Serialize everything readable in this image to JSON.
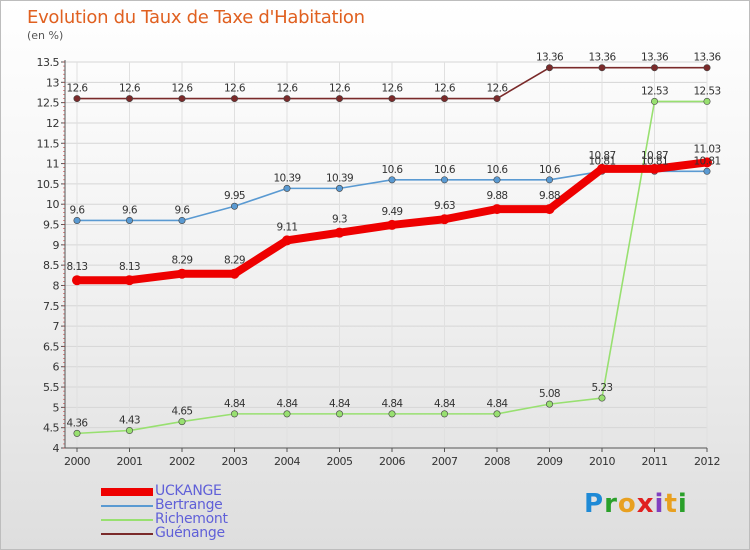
{
  "header": {
    "title": "Evolution du Taux de Taxe d'Habitation",
    "unit": "(en %)"
  },
  "brand": {
    "letters": [
      "P",
      "r",
      "o",
      "x",
      "i",
      "t",
      "i"
    ]
  },
  "colors": {
    "brand": [
      "#1f8ad6",
      "#2aa02a",
      "#e8a020",
      "#e02020",
      "#8040c0",
      "#e8a020",
      "#2aa02a"
    ]
  },
  "chart_data": {
    "type": "line",
    "title": "Evolution du Taux de Taxe d'Habitation",
    "ylabel": "(en %)",
    "x": [
      2000,
      2001,
      2002,
      2003,
      2004,
      2005,
      2006,
      2007,
      2008,
      2009,
      2010,
      2011,
      2012
    ],
    "ylim": [
      4,
      13.5
    ],
    "yticks": [
      4,
      4.5,
      5,
      5.5,
      6,
      6.5,
      7,
      7.5,
      8,
      8.5,
      9,
      9.5,
      10,
      10.5,
      11,
      11.5,
      12,
      12.5,
      13,
      13.5
    ],
    "legend_position": "bottom-left",
    "series": [
      {
        "name": "Guénange",
        "color": "#7a2a2a",
        "values": [
          12.6,
          12.6,
          12.6,
          12.6,
          12.6,
          12.6,
          12.6,
          12.6,
          12.6,
          13.36,
          13.36,
          13.36,
          13.36
        ],
        "labels": [
          "12.6",
          "12.6",
          "12.6",
          "12.6",
          "12.6",
          "12.6",
          "12.6",
          "12.6",
          "12.6",
          "13.36",
          "13.36",
          "13.36",
          "13.36"
        ]
      },
      {
        "name": "Bertrange",
        "color": "#5a9ad2",
        "values": [
          9.6,
          9.6,
          9.6,
          9.95,
          10.39,
          10.39,
          10.6,
          10.6,
          10.6,
          10.6,
          10.81,
          10.81,
          10.81
        ],
        "labels": [
          "9.6",
          "9.6",
          "9.6",
          "9.95",
          "10.39",
          "10.39",
          "10.6",
          "10.6",
          "10.6",
          "10.6",
          "10.81",
          "10.81",
          "10.81"
        ]
      },
      {
        "name": "Richemont",
        "color": "#98e070",
        "values": [
          4.36,
          4.43,
          4.65,
          4.84,
          4.84,
          4.84,
          4.84,
          4.84,
          4.84,
          5.08,
          5.23,
          12.53,
          12.53
        ],
        "labels": [
          "4.36",
          "4.43",
          "4.65",
          "4.84",
          "4.84",
          "4.84",
          "4.84",
          "4.84",
          "4.84",
          "5.08",
          "5.23",
          "12.53",
          "12.53"
        ]
      },
      {
        "name": "UCKANGE",
        "color": "#ee0000",
        "values": [
          8.13,
          8.13,
          8.29,
          8.29,
          9.11,
          9.3,
          9.49,
          9.63,
          9.88,
          9.88,
          10.87,
          10.87,
          11.03
        ],
        "labels": [
          "8.13",
          "8.13",
          "8.29",
          "8.29",
          "9.11",
          "9.3",
          "9.49",
          "9.63",
          "9.88",
          "9.88",
          "10.87",
          "10.87",
          "11.03"
        ]
      }
    ],
    "legend": [
      "UCKANGE",
      "Bertrange",
      "Richemont",
      "Guénange"
    ]
  }
}
